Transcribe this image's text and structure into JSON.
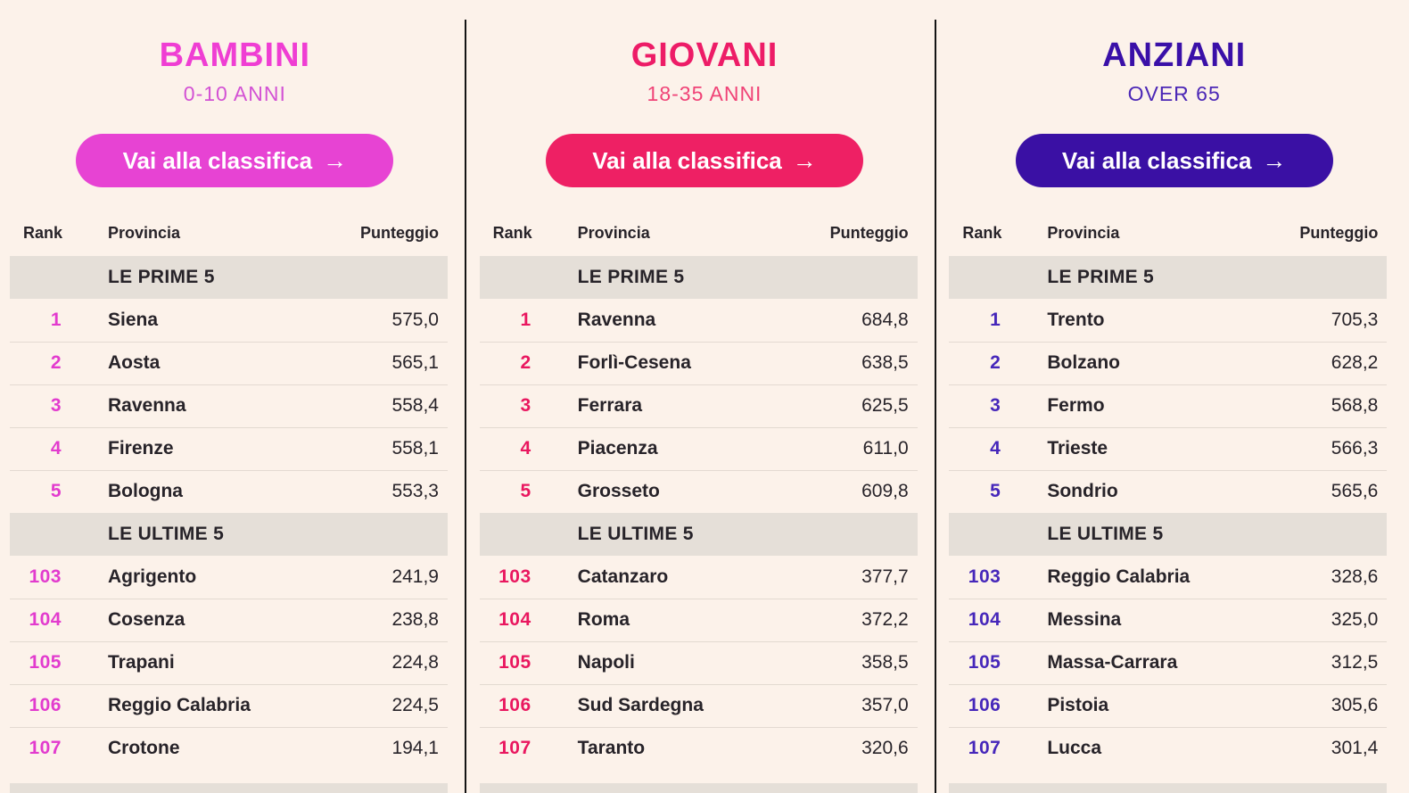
{
  "page": {
    "colors": {
      "bg": "#fcf2ea",
      "band": "#e5dfd8",
      "text": "#272329",
      "row_border": "#e3dad1",
      "divider": "#141414",
      "button_text": "#ffffff"
    }
  },
  "shared": {
    "button_label": "Vai alla classifica",
    "button_arrow": "→",
    "table_headers": {
      "rank": "Rank",
      "provincia": "Provincia",
      "punteggio": "Punteggio"
    },
    "top_section_label": "LE PRIME 5",
    "bottom_section_label": "LE ULTIME 5"
  },
  "columns": [
    {
      "id": "bambini",
      "title": "BAMBINI",
      "subtitle": "0-10 ANNI",
      "colors": {
        "title": "#ef3ed3",
        "subtitle": "#d352d4",
        "button": "#e743d3",
        "rank": "#e23bce"
      },
      "prime5": [
        {
          "rank": "1",
          "provincia": "Siena",
          "punteggio": "575,0"
        },
        {
          "rank": "2",
          "provincia": "Aosta",
          "punteggio": "565,1"
        },
        {
          "rank": "3",
          "provincia": "Ravenna",
          "punteggio": "558,4"
        },
        {
          "rank": "4",
          "provincia": "Firenze",
          "punteggio": "558,1"
        },
        {
          "rank": "5",
          "provincia": "Bologna",
          "punteggio": "553,3"
        }
      ],
      "ultime5": [
        {
          "rank": "103",
          "provincia": "Agrigento",
          "punteggio": "241,9"
        },
        {
          "rank": "104",
          "provincia": "Cosenza",
          "punteggio": "238,8"
        },
        {
          "rank": "105",
          "provincia": "Trapani",
          "punteggio": "224,8"
        },
        {
          "rank": "106",
          "provincia": "Reggio Calabria",
          "punteggio": "224,5"
        },
        {
          "rank": "107",
          "provincia": "Crotone",
          "punteggio": "194,1"
        }
      ]
    },
    {
      "id": "giovani",
      "title": "GIOVANI",
      "subtitle": "18-35 ANNI",
      "colors": {
        "title": "#ed1c67",
        "subtitle": "#f04377",
        "button": "#ee2064",
        "rank": "#e9175f"
      },
      "prime5": [
        {
          "rank": "1",
          "provincia": "Ravenna",
          "punteggio": "684,8"
        },
        {
          "rank": "2",
          "provincia": "Forlì-Cesena",
          "punteggio": "638,5"
        },
        {
          "rank": "3",
          "provincia": "Ferrara",
          "punteggio": "625,5"
        },
        {
          "rank": "4",
          "provincia": "Piacenza",
          "punteggio": "611,0"
        },
        {
          "rank": "5",
          "provincia": "Grosseto",
          "punteggio": "609,8"
        }
      ],
      "ultime5": [
        {
          "rank": "103",
          "provincia": "Catanzaro",
          "punteggio": "377,7"
        },
        {
          "rank": "104",
          "provincia": "Roma",
          "punteggio": "372,2"
        },
        {
          "rank": "105",
          "provincia": "Napoli",
          "punteggio": "358,5"
        },
        {
          "rank": "106",
          "provincia": "Sud Sardegna",
          "punteggio": "357,0"
        },
        {
          "rank": "107",
          "provincia": "Taranto",
          "punteggio": "320,6"
        }
      ]
    },
    {
      "id": "anziani",
      "title": "ANZIANI",
      "subtitle": "OVER 65",
      "colors": {
        "title": "#3a10a8",
        "subtitle": "#4b27b6",
        "button": "#3a10a4",
        "rank": "#4627ba"
      },
      "prime5": [
        {
          "rank": "1",
          "provincia": "Trento",
          "punteggio": "705,3"
        },
        {
          "rank": "2",
          "provincia": "Bolzano",
          "punteggio": "628,2"
        },
        {
          "rank": "3",
          "provincia": "Fermo",
          "punteggio": "568,8"
        },
        {
          "rank": "4",
          "provincia": "Trieste",
          "punteggio": "566,3"
        },
        {
          "rank": "5",
          "provincia": "Sondrio",
          "punteggio": "565,6"
        }
      ],
      "ultime5": [
        {
          "rank": "103",
          "provincia": "Reggio Calabria",
          "punteggio": "328,6"
        },
        {
          "rank": "104",
          "provincia": "Messina",
          "punteggio": "325,0"
        },
        {
          "rank": "105",
          "provincia": "Massa-Carrara",
          "punteggio": "312,5"
        },
        {
          "rank": "106",
          "provincia": "Pistoia",
          "punteggio": "305,6"
        },
        {
          "rank": "107",
          "provincia": "Lucca",
          "punteggio": "301,4"
        }
      ]
    }
  ]
}
